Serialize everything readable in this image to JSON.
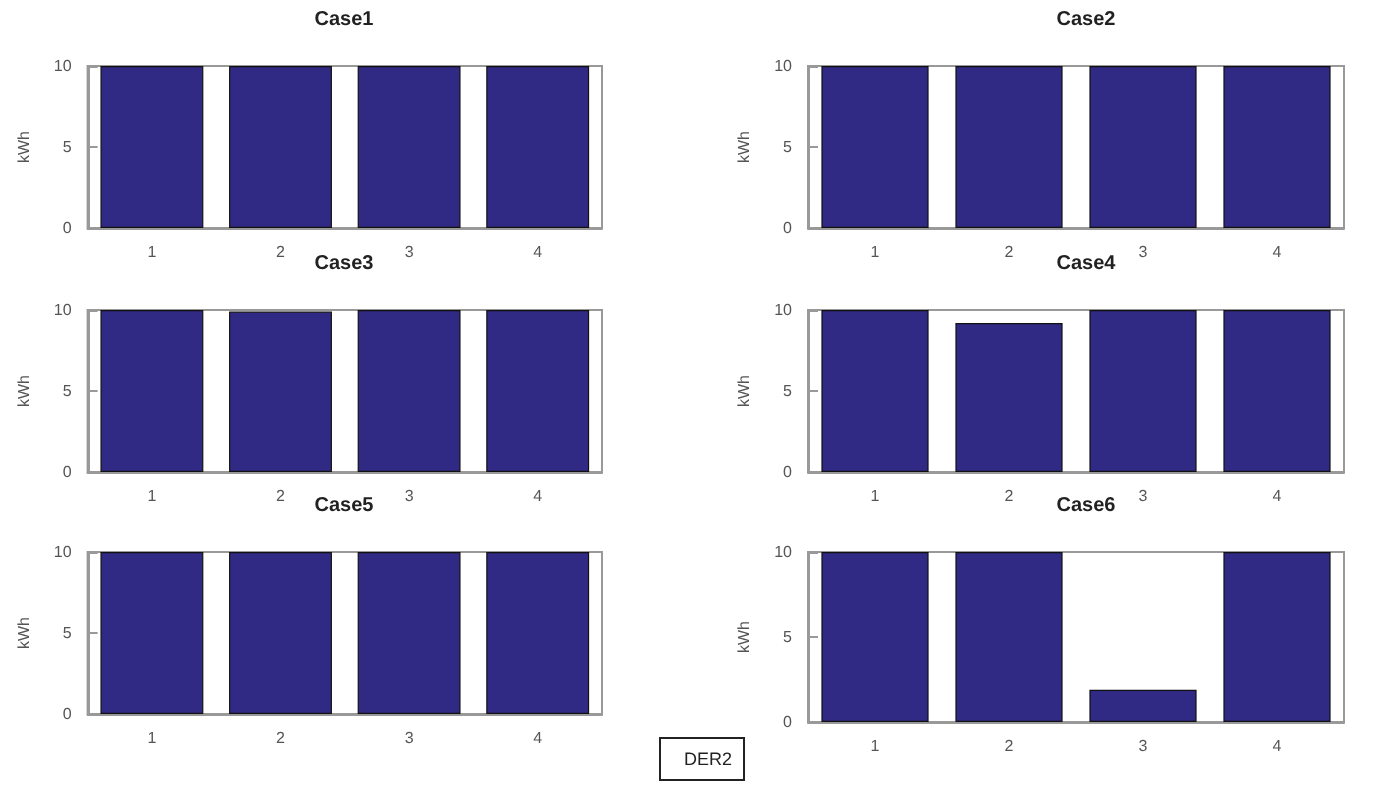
{
  "chart_data": [
    {
      "type": "bar",
      "title": "Case1",
      "ylabel": "kWh",
      "categories": [
        "1",
        "2",
        "3",
        "4"
      ],
      "values": [
        10,
        10,
        10,
        10
      ],
      "color": "#312a84",
      "ylim": [
        0,
        10
      ],
      "yticks": [
        0,
        5,
        10
      ],
      "grid": false
    },
    {
      "type": "bar",
      "title": "Case2",
      "ylabel": "kWh",
      "categories": [
        "1",
        "2",
        "3",
        "4"
      ],
      "values": [
        10,
        10,
        10,
        10
      ],
      "color": "#312a84",
      "ylim": [
        0,
        10
      ],
      "yticks": [
        0,
        5,
        10
      ],
      "grid": false
    },
    {
      "type": "bar",
      "title": "Case3",
      "ylabel": "kWh",
      "categories": [
        "1",
        "2",
        "3",
        "4"
      ],
      "values": [
        10,
        9.9,
        10,
        10
      ],
      "color": "#312a84",
      "ylim": [
        0,
        10
      ],
      "yticks": [
        0,
        5,
        10
      ],
      "grid": false
    },
    {
      "type": "bar",
      "title": "Case4",
      "ylabel": "kWh",
      "categories": [
        "1",
        "2",
        "3",
        "4"
      ],
      "values": [
        10,
        9.2,
        10,
        10
      ],
      "color": "#312a84",
      "ylim": [
        0,
        10
      ],
      "yticks": [
        0,
        5,
        10
      ],
      "grid": false
    },
    {
      "type": "bar",
      "title": "Case5",
      "ylabel": "kWh",
      "categories": [
        "1",
        "2",
        "3",
        "4"
      ],
      "values": [
        10,
        10,
        10,
        10
      ],
      "color": "#312a84",
      "ylim": [
        0,
        10
      ],
      "yticks": [
        0,
        5,
        10
      ],
      "grid": false
    },
    {
      "type": "bar",
      "title": "Case6",
      "ylabel": "kWh",
      "categories": [
        "1",
        "2",
        "3",
        "4"
      ],
      "series": [
        {
          "name": "DER2",
          "color": "#312a84",
          "values": [
            10,
            10,
            1.9,
            10
          ]
        }
      ],
      "ylim": [
        0,
        10
      ],
      "yticks": [
        0,
        5,
        10
      ],
      "grid": false,
      "legend": "bottom left"
    }
  ]
}
